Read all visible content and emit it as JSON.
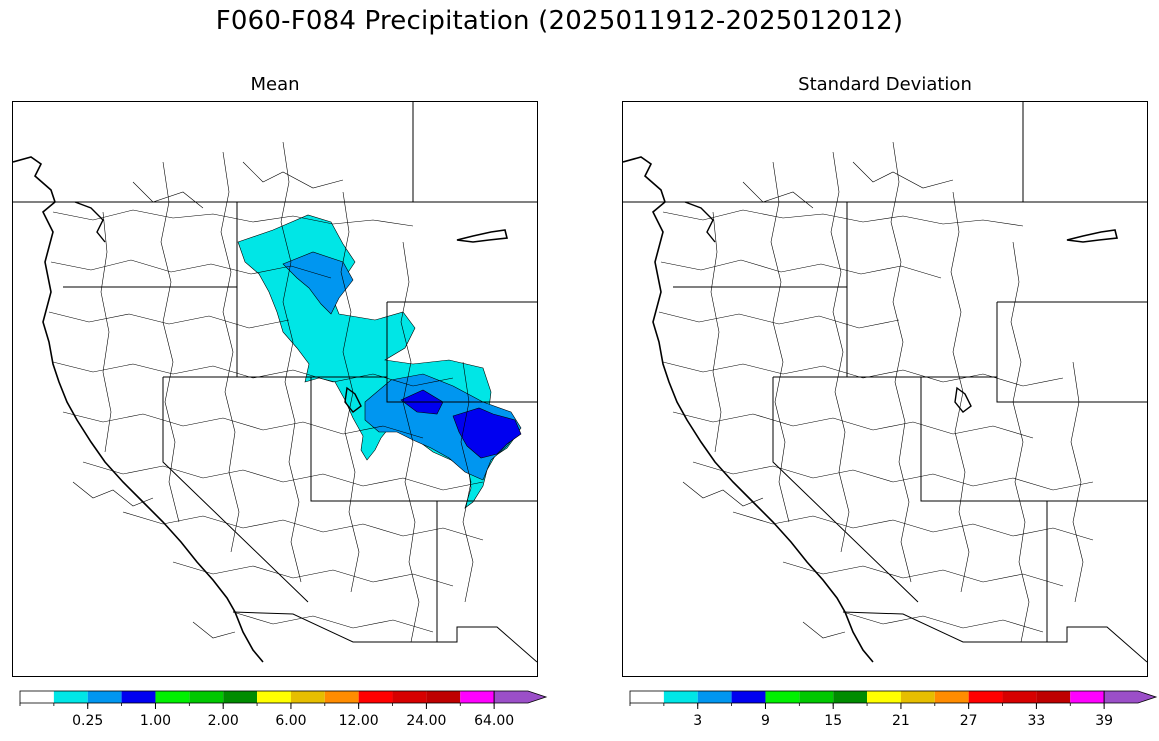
{
  "title": "F060-F084 Precipitation (2025011912-2025012012)",
  "panels": [
    {
      "title": "Mean",
      "colorbar": {
        "tick_labels": [
          "0.25",
          "1.00",
          "2.00",
          "6.00",
          "12.00",
          "24.00",
          "64.00"
        ],
        "colors": [
          "#ffffff",
          "#00e6e6",
          "#0096f0",
          "#0000f0",
          "#00f000",
          "#00c800",
          "#008c00",
          "#ffff00",
          "#e6be00",
          "#ff8c00",
          "#ff0000",
          "#d70000",
          "#be0000",
          "#ff00ff",
          "#9b4fc8"
        ]
      }
    },
    {
      "title": "Standard Deviation",
      "colorbar": {
        "tick_labels": [
          "3",
          "9",
          "15",
          "21",
          "27",
          "33",
          "39"
        ],
        "colors": [
          "#ffffff",
          "#00e6e6",
          "#0096f0",
          "#0000f0",
          "#00f000",
          "#00c800",
          "#008c00",
          "#ffff00",
          "#e6be00",
          "#ff8c00",
          "#ff0000",
          "#d70000",
          "#be0000",
          "#ff00ff",
          "#9b4fc8"
        ]
      }
    }
  ],
  "legend_colors": {
    "light": "#00e6e6",
    "medium": "#0096f0",
    "heavy": "#0000f0"
  }
}
